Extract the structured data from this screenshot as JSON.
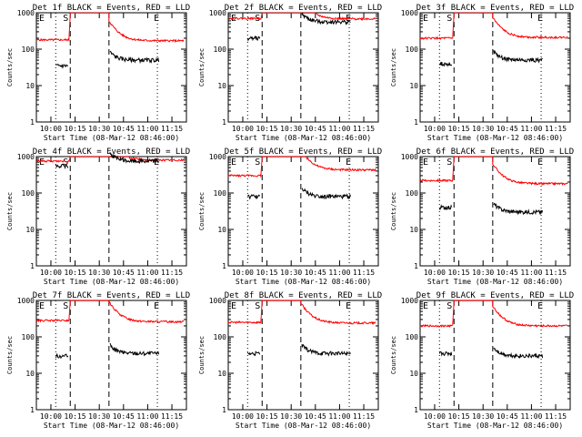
{
  "chart_data": {
    "type": "line",
    "layout": "3x3 grid",
    "shared": {
      "ylabel": "Counts/sec",
      "xlabel": "Start Time (08-Mar-12 08:46:00)",
      "x_range_hours": [
        9.85,
        11.4
      ],
      "ylim": [
        1,
        1000
      ],
      "y_scale": "log",
      "xticks": [
        {
          "label": "10:00",
          "v": 10.0
        },
        {
          "label": "10:15",
          "v": 10.25
        },
        {
          "label": "10:30",
          "v": 10.5
        },
        {
          "label": "10:45",
          "v": 10.75
        },
        {
          "label": "11:00",
          "v": 11.0
        },
        {
          "label": "11:15",
          "v": 11.25
        }
      ],
      "yticks": [
        {
          "label": "1",
          "v": 1
        },
        {
          "label": "10",
          "v": 10
        },
        {
          "label": "100",
          "v": 100
        },
        {
          "label": "1000",
          "v": 1000
        }
      ],
      "legend_note": "BLACK = Events, RED = LLD",
      "series_names": [
        "Events",
        "LLD"
      ],
      "series_colors": {
        "Events": "#000000",
        "LLD": "#ff0000"
      },
      "markers": [
        "E",
        "S",
        "E"
      ]
    },
    "panels": [
      {
        "title": "Det 1f BLACK = Events, RED = LLD",
        "sep": [
          10.05,
          10.2,
          10.6,
          11.1
        ],
        "events": {
          "pre": 35,
          "post": 50
        },
        "lld": {
          "pre": 180,
          "post": 170
        }
      },
      {
        "title": "Det 2f BLACK = Events, RED = LLD",
        "sep": [
          10.05,
          10.2,
          10.6,
          11.1
        ],
        "events": {
          "pre": 200,
          "post": 560
        },
        "lld": {
          "pre": 700,
          "post": 680
        }
      },
      {
        "title": "Det 3f BLACK = Events, RED = LLD",
        "sep": [
          10.05,
          10.2,
          10.6,
          11.1
        ],
        "events": {
          "pre": 40,
          "post": 50
        },
        "lld": {
          "pre": 200,
          "post": 210
        }
      },
      {
        "title": "Det 4f BLACK = Events, RED = LLD",
        "sep": [
          10.05,
          10.2,
          10.6,
          11.1
        ],
        "events": {
          "pre": 550,
          "post": 750
        },
        "lld": {
          "pre": 750,
          "post": 800
        }
      },
      {
        "title": "Det 5f BLACK = Events, RED = LLD",
        "sep": [
          10.05,
          10.2,
          10.6,
          11.1
        ],
        "events": {
          "pre": 80,
          "post": 80
        },
        "lld": {
          "pre": 300,
          "post": 430
        }
      },
      {
        "title": "Det 6f BLACK = Events, RED = LLD",
        "sep": [
          10.05,
          10.2,
          10.6,
          11.1
        ],
        "events": {
          "pre": 40,
          "post": 30
        },
        "lld": {
          "pre": 220,
          "post": 180
        }
      },
      {
        "title": "Det 7f BLACK = Events, RED = LLD",
        "sep": [
          10.05,
          10.2,
          10.6,
          11.1
        ],
        "events": {
          "pre": 30,
          "post": 35
        },
        "lld": {
          "pre": 280,
          "post": 260
        }
      },
      {
        "title": "Det 8f BLACK = Events, RED = LLD",
        "sep": [
          10.05,
          10.2,
          10.6,
          11.1
        ],
        "events": {
          "pre": 35,
          "post": 35
        },
        "lld": {
          "pre": 250,
          "post": 240
        }
      },
      {
        "title": "Det 9f BLACK = Events, RED = LLD",
        "sep": [
          10.05,
          10.2,
          10.6,
          11.1
        ],
        "events": {
          "pre": 35,
          "post": 30
        },
        "lld": {
          "pre": 200,
          "post": 200
        }
      }
    ]
  }
}
